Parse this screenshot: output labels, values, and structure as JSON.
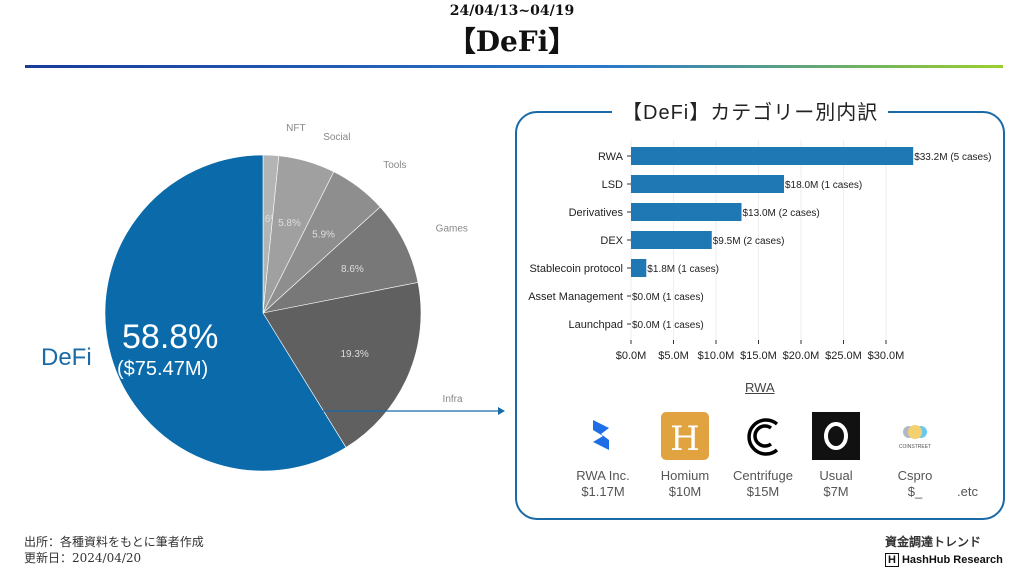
{
  "header": {
    "date": "24/04/13~04/19",
    "title": "【DeFi】"
  },
  "pie": {
    "slices": [
      {
        "label": "NFT",
        "pct": 1.6,
        "color": "#b4b4b4"
      },
      {
        "label": "Social",
        "pct": 5.8,
        "color": "#a0a0a0"
      },
      {
        "label": "Tools",
        "pct": 5.9,
        "color": "#8e8e8e"
      },
      {
        "label": "Games",
        "pct": 8.6,
        "color": "#787878"
      },
      {
        "label": "Infra",
        "pct": 19.3,
        "color": "#606060"
      },
      {
        "label": "DeFi",
        "pct": 58.8,
        "color": "#0a6aaa"
      }
    ],
    "defi_label": "DeFi",
    "defi_pct": "58.8%",
    "defi_amount": "($75.47M)"
  },
  "chart_data": {
    "type": "bar",
    "title": "【DeFi】カテゴリー別内訳",
    "categories": [
      "RWA",
      "LSD",
      "Derivatives",
      "DEX",
      "Stablecoin protocol",
      "Asset Management",
      "Launchpad"
    ],
    "values": [
      33.2,
      18.0,
      13.0,
      9.5,
      1.8,
      0.0,
      0.0
    ],
    "cases": [
      5,
      1,
      2,
      2,
      1,
      1,
      1
    ],
    "data_labels": [
      "$33.2M (5 cases)",
      "$18.0M (1 cases)",
      "$13.0M (2 cases)",
      "$9.5M (2 cases)",
      "$1.8M (1 cases)",
      "$0.0M (1 cases)",
      "$0.0M (1 cases)"
    ],
    "xticks": [
      "$0.0M",
      "$5.0M",
      "$10.0M",
      "$15.0M",
      "$20.0M",
      "$25.0M",
      "$30.0M"
    ],
    "xlim": [
      0,
      33.2
    ],
    "bar_color": "#1f77b4",
    "grid": true
  },
  "rwa": {
    "title": "RWA",
    "companies": [
      {
        "name": "RWA Inc.",
        "amount": "$1.17M"
      },
      {
        "name": "Homium",
        "amount": "$10M"
      },
      {
        "name": "Centrifuge",
        "amount": "$15M"
      },
      {
        "name": "Usual",
        "amount": "$7M"
      },
      {
        "name": "Cspro",
        "amount": "$_",
        "logo_text": "COINSTREET"
      }
    ],
    "etc": ".etc"
  },
  "footer": {
    "source": "出所：各種資料をもとに筆者作成",
    "updated": "更新日：2024/04/20",
    "brand": "資金調達トレンド",
    "org": "HashHub Research",
    "org_logo": "H"
  }
}
